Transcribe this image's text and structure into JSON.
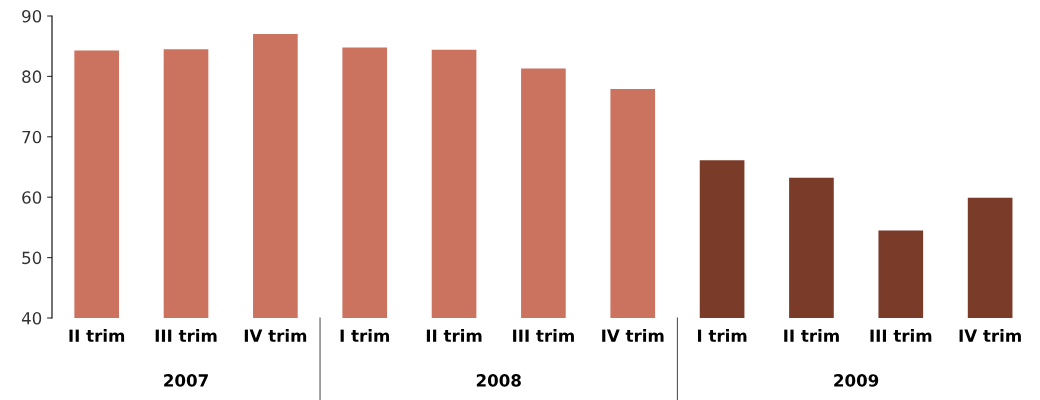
{
  "chart_data": {
    "type": "bar",
    "categories": [
      "II trim",
      "III trim",
      "IV trim",
      "I trim",
      "II trim",
      "III trim",
      "IV trim",
      "I trim",
      "II trim",
      "III trim",
      "IV trim"
    ],
    "values": [
      84.3,
      84.5,
      87.0,
      84.8,
      84.4,
      81.3,
      77.9,
      66.1,
      63.2,
      54.5,
      59.9
    ],
    "colors": [
      "#cc7360",
      "#cc7360",
      "#cc7360",
      "#cc7360",
      "#cc7360",
      "#cc7360",
      "#cc7360",
      "#7a3b29",
      "#7a3b29",
      "#7a3b29",
      "#7a3b29"
    ],
    "ylim": [
      40,
      90
    ],
    "yticks": [
      40,
      50,
      60,
      70,
      80,
      90
    ],
    "grid": false,
    "annotations": [
      "2007",
      "2008",
      "2009"
    ]
  }
}
